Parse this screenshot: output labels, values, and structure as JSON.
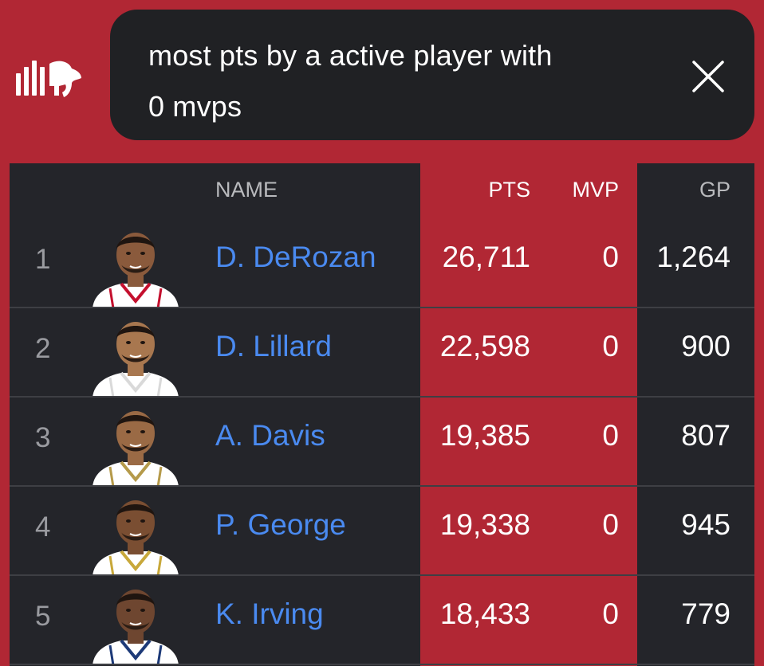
{
  "search": {
    "query_line1": "most pts by a active player with",
    "query_line2": "0 mvps"
  },
  "colors": {
    "brand_red": "#b12734",
    "dark_bg": "#24252a",
    "link_blue": "#4a8af0"
  },
  "icons": {
    "logo": "statmuse-logo-icon",
    "clear": "close-icon"
  },
  "table": {
    "columns": {
      "name": "NAME",
      "pts": "PTS",
      "mvp": "MVP",
      "gp": "GP"
    },
    "rows": [
      {
        "rank": "1",
        "name": "D. DeRozan",
        "pts": "26,711",
        "mvp": "0",
        "gp": "1,264",
        "jersey": "#ffffff",
        "trim": "#c4102e",
        "skin": "#8a5a3c"
      },
      {
        "rank": "2",
        "name": "D. Lillard",
        "pts": "22,598",
        "mvp": "0",
        "gp": "900",
        "jersey": "#ffffff",
        "trim": "#d9d9d9",
        "skin": "#a8774f"
      },
      {
        "rank": "3",
        "name": "A. Davis",
        "pts": "19,385",
        "mvp": "0",
        "gp": "807",
        "jersey": "#ffffff",
        "trim": "#b59a4a",
        "skin": "#9a6a45"
      },
      {
        "rank": "4",
        "name": "P. George",
        "pts": "19,338",
        "mvp": "0",
        "gp": "945",
        "jersey": "#ffffff",
        "trim": "#c8a83a",
        "skin": "#7a4e32"
      },
      {
        "rank": "5",
        "name": "K. Irving",
        "pts": "18,433",
        "mvp": "0",
        "gp": "779",
        "jersey": "#ffffff",
        "trim": "#1d3a78",
        "skin": "#6e4630"
      }
    ]
  }
}
